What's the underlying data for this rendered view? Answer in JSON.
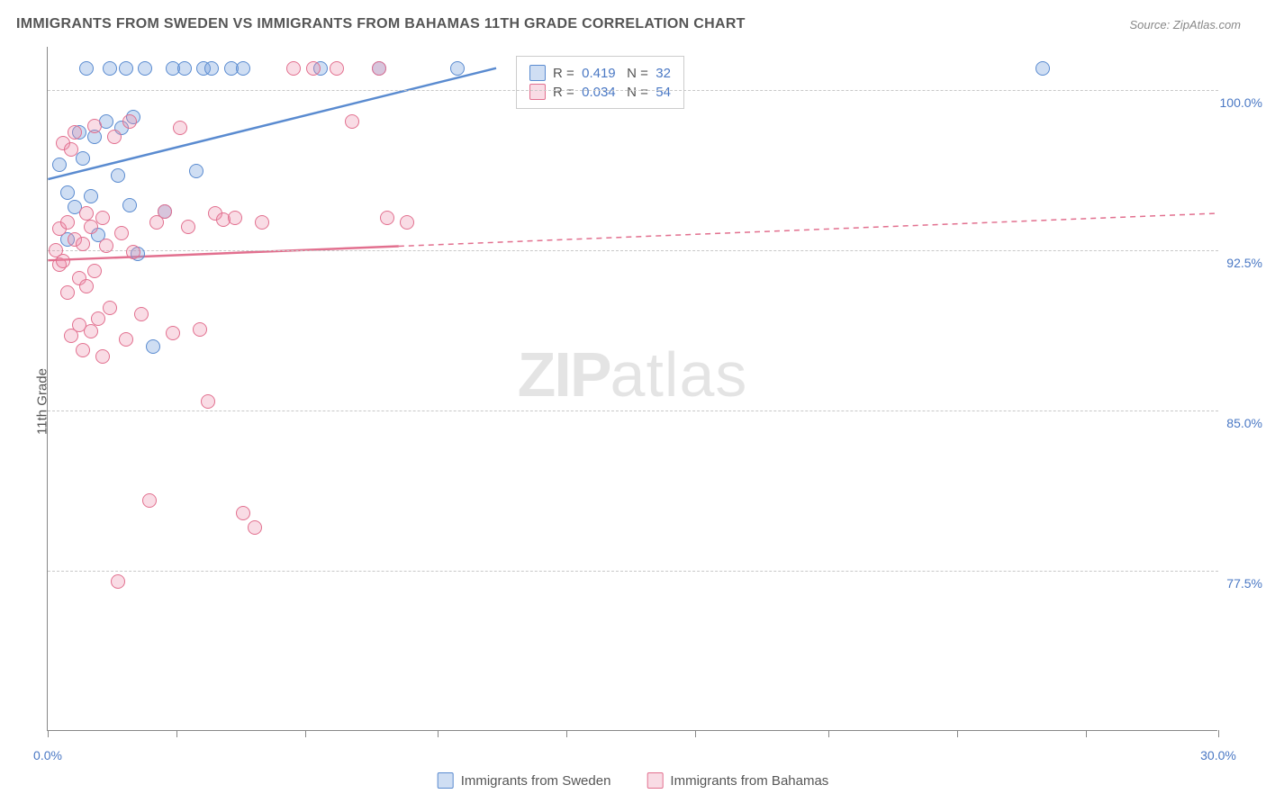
{
  "title": "IMMIGRANTS FROM SWEDEN VS IMMIGRANTS FROM BAHAMAS 11TH GRADE CORRELATION CHART",
  "source": "Source: ZipAtlas.com",
  "ylabel": "11th Grade",
  "watermark_a": "ZIP",
  "watermark_b": "atlas",
  "chart": {
    "type": "scatter",
    "xlim": [
      0,
      30
    ],
    "ylim": [
      70,
      102
    ],
    "xtick_positions": [
      0,
      3.3,
      6.6,
      10,
      13.3,
      16.6,
      20,
      23.3,
      26.6,
      30
    ],
    "xtick_labels": {
      "0": "0.0%",
      "30": "30.0%"
    },
    "ytick_positions": [
      77.5,
      85.0,
      92.5,
      100.0
    ],
    "ytick_labels": [
      "77.5%",
      "85.0%",
      "92.5%",
      "100.0%"
    ],
    "grid_color": "#c8c8c8",
    "background_color": "#ffffff",
    "axis_color": "#888888",
    "marker_radius": 8,
    "marker_stroke_width": 1.5,
    "series": [
      {
        "name": "Immigrants from Sweden",
        "fill": "rgba(118,160,220,0.35)",
        "stroke": "#5a8bd0",
        "R": "0.419",
        "N": "32",
        "trend": {
          "x1": 0,
          "y1": 95.8,
          "x2": 11.5,
          "y2": 101.0,
          "solid_until_x": 11.5
        },
        "points": [
          [
            0.3,
            96.5
          ],
          [
            0.5,
            93.0
          ],
          [
            0.5,
            95.2
          ],
          [
            0.7,
            94.5
          ],
          [
            0.8,
            98.0
          ],
          [
            0.9,
            96.8
          ],
          [
            1.0,
            101.0
          ],
          [
            1.1,
            95.0
          ],
          [
            1.2,
            97.8
          ],
          [
            1.3,
            93.2
          ],
          [
            1.5,
            98.5
          ],
          [
            1.6,
            101.0
          ],
          [
            1.8,
            96.0
          ],
          [
            1.9,
            98.2
          ],
          [
            2.0,
            101.0
          ],
          [
            2.1,
            94.6
          ],
          [
            2.2,
            98.7
          ],
          [
            2.3,
            92.3
          ],
          [
            2.5,
            101.0
          ],
          [
            2.7,
            88.0
          ],
          [
            3.0,
            94.3
          ],
          [
            3.2,
            101.0
          ],
          [
            3.5,
            101.0
          ],
          [
            3.8,
            96.2
          ],
          [
            4.0,
            101.0
          ],
          [
            4.2,
            101.0
          ],
          [
            4.7,
            101.0
          ],
          [
            5.0,
            101.0
          ],
          [
            7.0,
            101.0
          ],
          [
            8.5,
            101.0
          ],
          [
            10.5,
            101.0
          ],
          [
            25.5,
            101.0
          ]
        ]
      },
      {
        "name": "Immigrants from Bahamas",
        "fill": "rgba(235,140,170,0.30)",
        "stroke": "#e2708f",
        "R": "0.034",
        "N": "54",
        "trend": {
          "x1": 0,
          "y1": 92.0,
          "x2": 30,
          "y2": 94.2,
          "solid_until_x": 9.0
        },
        "points": [
          [
            0.2,
            92.5
          ],
          [
            0.3,
            93.5
          ],
          [
            0.3,
            91.8
          ],
          [
            0.4,
            97.5
          ],
          [
            0.4,
            92.0
          ],
          [
            0.5,
            93.8
          ],
          [
            0.5,
            90.5
          ],
          [
            0.6,
            97.2
          ],
          [
            0.6,
            88.5
          ],
          [
            0.7,
            93.0
          ],
          [
            0.7,
            98.0
          ],
          [
            0.8,
            91.2
          ],
          [
            0.8,
            89.0
          ],
          [
            0.9,
            92.8
          ],
          [
            0.9,
            87.8
          ],
          [
            1.0,
            94.2
          ],
          [
            1.0,
            90.8
          ],
          [
            1.1,
            93.6
          ],
          [
            1.1,
            88.7
          ],
          [
            1.2,
            98.3
          ],
          [
            1.2,
            91.5
          ],
          [
            1.3,
            89.3
          ],
          [
            1.4,
            94.0
          ],
          [
            1.4,
            87.5
          ],
          [
            1.5,
            92.7
          ],
          [
            1.6,
            89.8
          ],
          [
            1.7,
            97.8
          ],
          [
            1.8,
            77.0
          ],
          [
            1.9,
            93.3
          ],
          [
            2.0,
            88.3
          ],
          [
            2.1,
            98.5
          ],
          [
            2.2,
            92.4
          ],
          [
            2.4,
            89.5
          ],
          [
            2.6,
            80.8
          ],
          [
            2.8,
            93.8
          ],
          [
            3.0,
            94.3
          ],
          [
            3.2,
            88.6
          ],
          [
            3.4,
            98.2
          ],
          [
            3.6,
            93.6
          ],
          [
            3.9,
            88.8
          ],
          [
            4.1,
            85.4
          ],
          [
            4.3,
            94.2
          ],
          [
            4.5,
            93.9
          ],
          [
            4.8,
            94.0
          ],
          [
            5.0,
            80.2
          ],
          [
            5.3,
            79.5
          ],
          [
            5.5,
            93.8
          ],
          [
            6.3,
            101.0
          ],
          [
            6.8,
            101.0
          ],
          [
            7.4,
            101.0
          ],
          [
            7.8,
            98.5
          ],
          [
            8.5,
            101.0
          ],
          [
            8.7,
            94.0
          ],
          [
            9.2,
            93.8
          ]
        ]
      }
    ]
  },
  "legend_labels": {
    "sweden": "Immigrants from Sweden",
    "bahamas": "Immigrants from Bahamas"
  }
}
